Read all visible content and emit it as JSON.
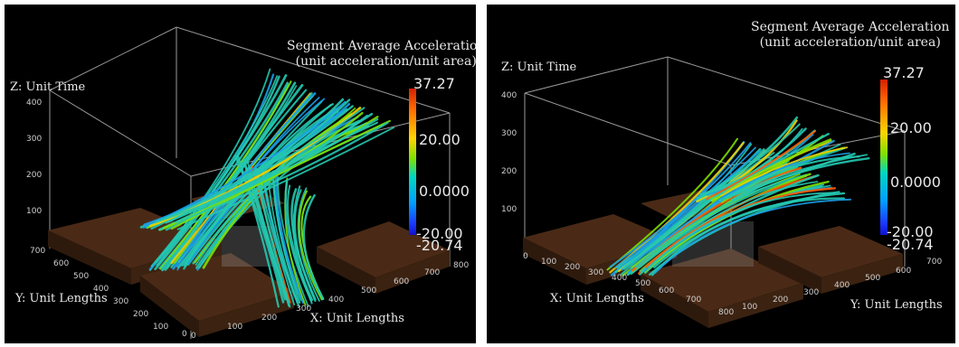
{
  "panels": [
    {
      "colorbar": {
        "title_line1": "Segment Average Acceleration",
        "title_line2": "(unit acceleration/unit area)",
        "max": "37.27",
        "t1": "20.00",
        "t2": "0.0000",
        "t3": "-20.00",
        "min": "-20.74"
      },
      "z_label": "Z: Unit Time",
      "y_label": "Y: Unit Lengths",
      "x_label": "X: Unit Lengths",
      "z_ticks": [
        "400",
        "300",
        "200",
        "100"
      ],
      "y_ticks": [
        "700",
        "600",
        "500",
        "400",
        "300",
        "200",
        "100",
        "0"
      ],
      "x_ticks": [
        "0",
        "100",
        "200",
        "300",
        "400",
        "500",
        "600",
        "700",
        "800"
      ]
    },
    {
      "colorbar": {
        "title_line1": "Segment Average Acceleration",
        "title_line2": "(unit acceleration/unit area)",
        "max": "37.27",
        "t1": "20.00",
        "t2": "0.0000",
        "t3": "-20.00",
        "min": "-20.74"
      },
      "z_label": "Z: Unit Time",
      "x_label": "X: Unit Lengths",
      "y_label": "Y: Unit Lengths",
      "z_ticks": [
        "400",
        "300",
        "200",
        "100"
      ],
      "x_ticks": [
        "0",
        "100",
        "200",
        "300",
        "400",
        "500",
        "600",
        "700",
        "800"
      ],
      "y_ticks": [
        "100",
        "200",
        "300",
        "400",
        "500",
        "600",
        "700"
      ]
    }
  ],
  "colors": {
    "background": "#000000",
    "block": "#4a2a16",
    "trajectory": "#2fd0b0",
    "cb_max": "#d62000",
    "cb_min": "#1010d0"
  }
}
